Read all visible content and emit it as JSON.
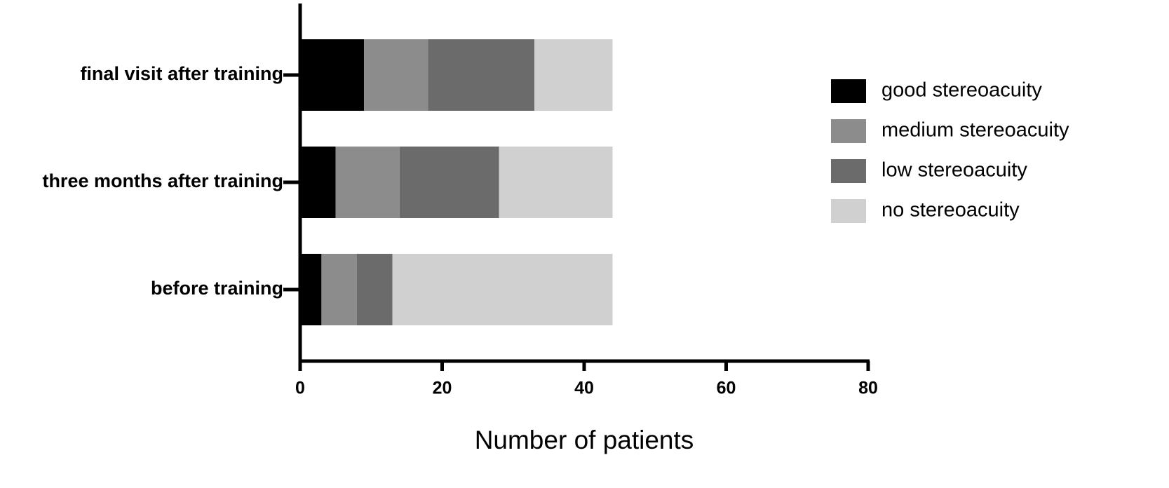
{
  "chart_data": {
    "type": "stacked-bar-horizontal",
    "categories": [
      "final visit after training",
      "three months after training",
      "before training"
    ],
    "series": [
      {
        "name": "good stereoacuity",
        "color": "#000000",
        "values": [
          9,
          5,
          3
        ]
      },
      {
        "name": "medium stereoacuity",
        "color": "#8c8c8c",
        "values": [
          9,
          9,
          5
        ]
      },
      {
        "name": "low stereoacuity",
        "color": "#6b6b6b",
        "values": [
          15,
          14,
          5
        ]
      },
      {
        "name": "no stereoacuity",
        "color": "#d0d0d0",
        "values": [
          11,
          16,
          31
        ]
      }
    ],
    "xlabel": "Number of patients",
    "xlim": [
      0,
      80
    ],
    "xticks": [
      0,
      20,
      40,
      60,
      80
    ],
    "grid": false,
    "legend": "right"
  }
}
